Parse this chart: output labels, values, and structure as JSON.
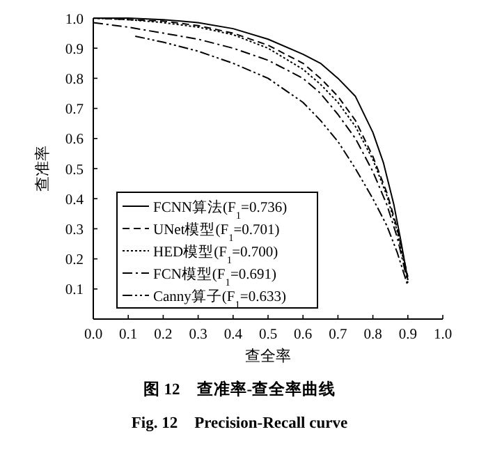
{
  "chart_data": {
    "type": "line",
    "title": "图 12　查准率-查全率曲线",
    "subtitle": "Fig. 12　Precision-Recall curve",
    "xlabel": "查全率",
    "ylabel": "查准率",
    "xlim": [
      0,
      1
    ],
    "ylim": [
      0,
      1
    ],
    "xticks": [
      {
        "value": 0,
        "label": "0.0"
      },
      0.1,
      0.2,
      0.3,
      0.4,
      0.5,
      0.6,
      0.7,
      0.8,
      0.9,
      {
        "value": 1,
        "label": "1.0"
      }
    ],
    "yticks": [
      0.1,
      0.2,
      0.3,
      0.4,
      0.5,
      0.6,
      0.7,
      0.8,
      0.9,
      {
        "value": 1,
        "label": "1.0"
      }
    ],
    "grid": false,
    "legend": "bottom left",
    "series": [
      {
        "name": "FCNN算法(F$_{1}$=0.736)",
        "color": "#000000",
        "line_style": "solid",
        "x": [
          0,
          0.1,
          0.2,
          0.3,
          0.4,
          0.5,
          0.6,
          0.65,
          0.7,
          0.75,
          0.8,
          0.83,
          0.86,
          0.88,
          0.9
        ],
        "values": [
          1.0,
          1.0,
          0.995,
          0.985,
          0.965,
          0.93,
          0.88,
          0.85,
          0.8,
          0.74,
          0.62,
          0.52,
          0.38,
          0.26,
          0.13
        ]
      },
      {
        "name": "UNet模型(F$_{1}$=0.701)",
        "color": "#000000",
        "line_style": "dashed",
        "x": [
          0,
          0.1,
          0.2,
          0.3,
          0.4,
          0.5,
          0.6,
          0.65,
          0.7,
          0.75,
          0.8,
          0.84,
          0.87,
          0.9
        ],
        "values": [
          1.0,
          0.995,
          0.99,
          0.975,
          0.95,
          0.91,
          0.85,
          0.8,
          0.74,
          0.66,
          0.54,
          0.42,
          0.3,
          0.14
        ]
      },
      {
        "name": "HED模型(F$_{1}$=0.700)",
        "color": "#000000",
        "line_style": "dotted",
        "x": [
          0,
          0.1,
          0.2,
          0.3,
          0.4,
          0.5,
          0.6,
          0.65,
          0.7,
          0.75,
          0.8,
          0.84,
          0.87,
          0.9
        ],
        "values": [
          1.0,
          0.995,
          0.985,
          0.97,
          0.945,
          0.9,
          0.83,
          0.78,
          0.72,
          0.64,
          0.53,
          0.41,
          0.29,
          0.13
        ]
      },
      {
        "name": "FCN模型(F$_{1}$=0.691)",
        "color": "#000000",
        "line_style": "dashdot",
        "x": [
          0,
          0.1,
          0.2,
          0.3,
          0.4,
          0.5,
          0.6,
          0.65,
          0.7,
          0.75,
          0.8,
          0.84,
          0.87,
          0.9
        ],
        "values": [
          0.985,
          0.97,
          0.95,
          0.93,
          0.9,
          0.86,
          0.8,
          0.75,
          0.68,
          0.6,
          0.49,
          0.38,
          0.27,
          0.12
        ]
      },
      {
        "name": "Canny算子(F$_{1}$=0.633)",
        "color": "#000000",
        "line_style": "dashdotdot",
        "x": [
          0.12,
          0.2,
          0.3,
          0.4,
          0.5,
          0.6,
          0.65,
          0.7,
          0.75,
          0.8,
          0.84,
          0.87,
          0.9
        ],
        "values": [
          0.94,
          0.92,
          0.89,
          0.85,
          0.8,
          0.72,
          0.66,
          0.59,
          0.5,
          0.4,
          0.31,
          0.22,
          0.11
        ]
      }
    ]
  }
}
